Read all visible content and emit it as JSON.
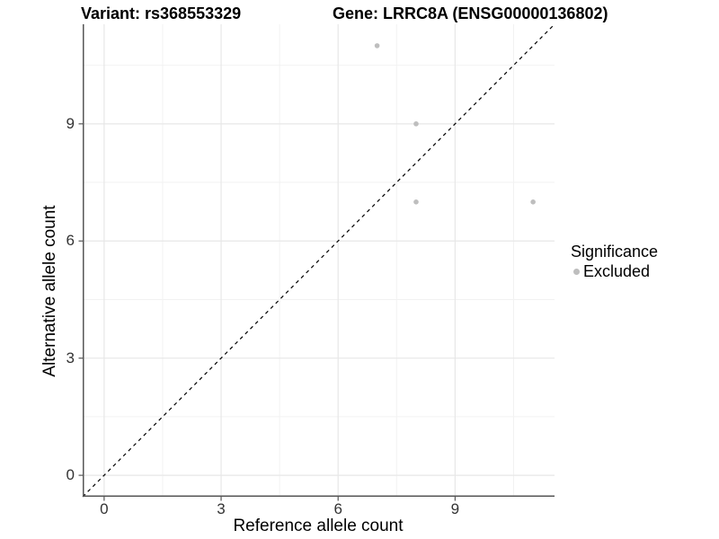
{
  "chart_data": {
    "type": "scatter",
    "title_left": "Variant: rs368553329",
    "title_right": "Gene: LRRC8A (ENSG00000136802)",
    "xlabel": "Reference allele count",
    "ylabel": "Alternative allele count",
    "xlim": [
      -0.55,
      11.55
    ],
    "ylim": [
      -0.55,
      11.55
    ],
    "xticks": [
      0,
      3,
      6,
      9
    ],
    "yticks": [
      0,
      3,
      6,
      9
    ],
    "xminor": [
      1.5,
      4.5,
      7.5,
      10.5
    ],
    "yminor": [
      1.5,
      4.5,
      7.5,
      10.5
    ],
    "grid": true,
    "legend_position": "right",
    "series": [
      {
        "name": "Excluded",
        "color": "#bebebe",
        "points": [
          {
            "x": 7,
            "y": 11
          },
          {
            "x": 8,
            "y": 9
          },
          {
            "x": 8,
            "y": 7
          },
          {
            "x": 11,
            "y": 7
          }
        ]
      }
    ],
    "reference_line": {
      "kind": "identity",
      "style": "dashed",
      "color": "#000000"
    },
    "legend": {
      "title": "Significance",
      "items": [
        {
          "label": "Excluded",
          "color": "#bebebe"
        }
      ]
    },
    "colors": {
      "axis_line": "#555555",
      "tick_label": "#333333",
      "grid_major": "#e7e7e7",
      "grid_minor": "#f2f2f2",
      "point": "#bebebe",
      "background": "#ffffff"
    }
  }
}
